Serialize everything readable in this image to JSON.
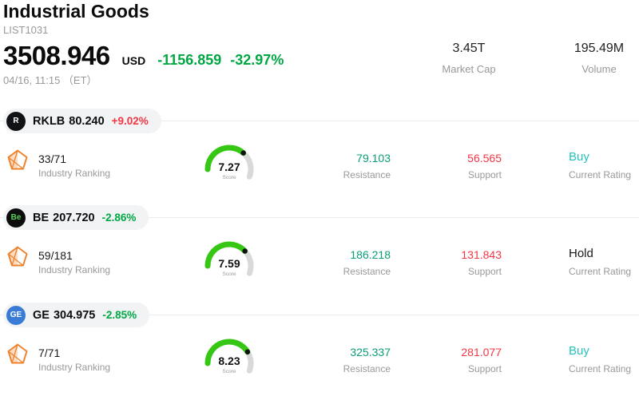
{
  "colors": {
    "up": "#f23645",
    "down": "#00a843",
    "resistance": "#0a9e78",
    "support": "#f23645",
    "buy": "#27c2bb",
    "hold": "#16181a",
    "gauge_on": "#35c713",
    "gauge_off": "#d9d9d9",
    "icon_orange": "#ef832c",
    "label_gray": "#999999",
    "divider": "#ececec"
  },
  "header": {
    "title": "Industrial Goods",
    "subtitle": "LIST1031",
    "price": "3508.946",
    "currency": "USD",
    "change": "-1156.859",
    "change_pct": "-32.97%",
    "datetime": "04/16, 11:15 （ET）",
    "market_cap": {
      "value": "3.45T",
      "label": "Market Cap"
    },
    "volume": {
      "value": "195.49M",
      "label": "Volume"
    }
  },
  "stocks": [
    {
      "ticker": "RKLB",
      "price": "80.240",
      "change": "+9.02%",
      "direction": "up",
      "logo": {
        "text": "R",
        "bg": "#111215",
        "fg": "#ffffff"
      },
      "industry_ranking": {
        "value": "33/71",
        "label": "Industry Ranking"
      },
      "gauge": {
        "score": 7.27,
        "label": "Score"
      },
      "resistance": {
        "value": "79.103",
        "label": "Resistance"
      },
      "support": {
        "value": "56.565",
        "label": "Support"
      },
      "rating": {
        "value": "Buy",
        "style": "buy",
        "label": "Current Rating"
      }
    },
    {
      "ticker": "BE",
      "price": "207.720",
      "change": "-2.86%",
      "direction": "down",
      "logo": {
        "text": "Be",
        "bg": "#0c0c0c",
        "fg": "#57d05a"
      },
      "industry_ranking": {
        "value": "59/181",
        "label": "Industry Ranking"
      },
      "gauge": {
        "score": 7.59,
        "label": "Score"
      },
      "resistance": {
        "value": "186.218",
        "label": "Resistance"
      },
      "support": {
        "value": "131.843",
        "label": "Support"
      },
      "rating": {
        "value": "Hold",
        "style": "hold",
        "label": "Current Rating"
      }
    },
    {
      "ticker": "GE",
      "price": "304.975",
      "change": "-2.85%",
      "direction": "down",
      "logo": {
        "text": "GE",
        "bg": "#3a7bd5",
        "fg": "#ffffff"
      },
      "industry_ranking": {
        "value": "7/71",
        "label": "Industry Ranking"
      },
      "gauge": {
        "score": 8.23,
        "label": "Score"
      },
      "resistance": {
        "value": "325.337",
        "label": "Resistance"
      },
      "support": {
        "value": "281.077",
        "label": "Support"
      },
      "rating": {
        "value": "Buy",
        "style": "buy",
        "label": "Current Rating"
      }
    }
  ]
}
